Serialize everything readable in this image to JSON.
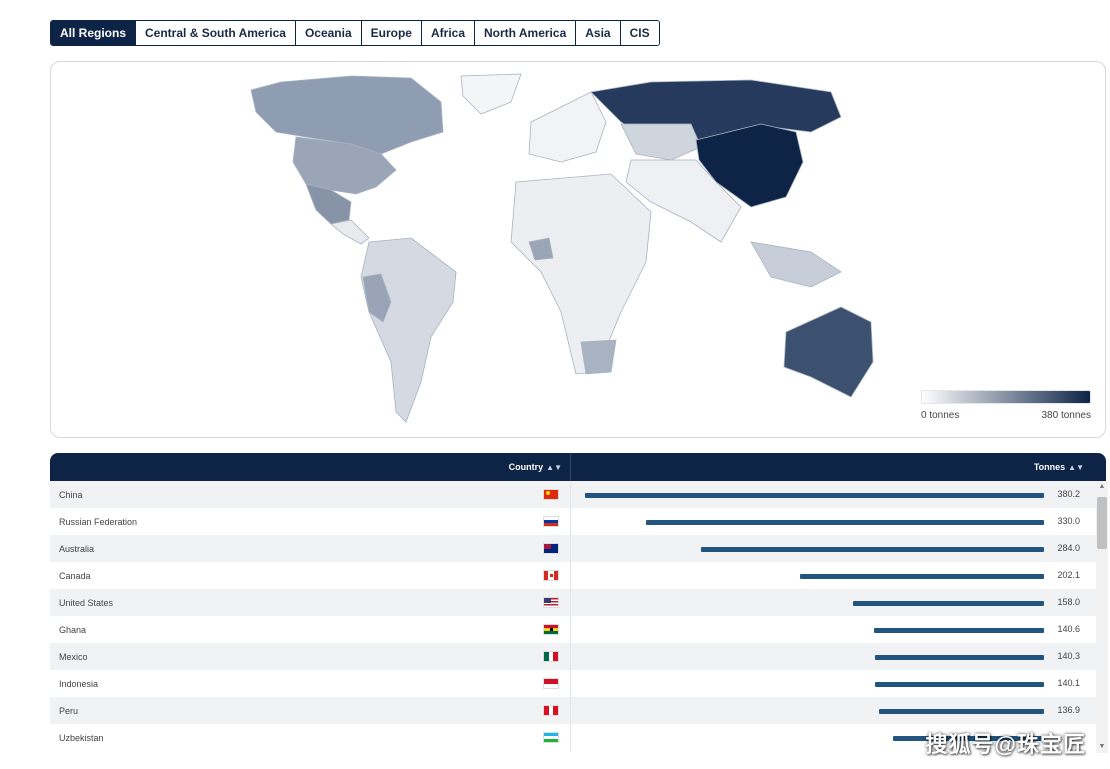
{
  "tabs": [
    {
      "label": "All Regions",
      "active": true
    },
    {
      "label": "Central & South America",
      "active": false
    },
    {
      "label": "Oceania",
      "active": false
    },
    {
      "label": "Europe",
      "active": false
    },
    {
      "label": "Africa",
      "active": false
    },
    {
      "label": "North America",
      "active": false
    },
    {
      "label": "Asia",
      "active": false
    },
    {
      "label": "CIS",
      "active": false
    }
  ],
  "legend": {
    "min_label": "0 tonnes",
    "max_label": "380 tonnes",
    "min_color": "#ffffff",
    "max_color": "#0d2447"
  },
  "table": {
    "columns": {
      "country": "Country",
      "tonnes": "Tonnes"
    },
    "max_value": 380.2,
    "rows": [
      {
        "country": "China",
        "value": "380.2",
        "num": 380.2,
        "flag": "cn"
      },
      {
        "country": "Russian Federation",
        "value": "330.0",
        "num": 330.0,
        "flag": "ru"
      },
      {
        "country": "Australia",
        "value": "284.0",
        "num": 284.0,
        "flag": "au"
      },
      {
        "country": "Canada",
        "value": "202.1",
        "num": 202.1,
        "flag": "ca"
      },
      {
        "country": "United States",
        "value": "158.0",
        "num": 158.0,
        "flag": "us"
      },
      {
        "country": "Ghana",
        "value": "140.6",
        "num": 140.6,
        "flag": "gh"
      },
      {
        "country": "Mexico",
        "value": "140.3",
        "num": 140.3,
        "flag": "mx"
      },
      {
        "country": "Indonesia",
        "value": "140.1",
        "num": 140.1,
        "flag": "id"
      },
      {
        "country": "Peru",
        "value": "136.9",
        "num": 136.9,
        "flag": "pe"
      },
      {
        "country": "Uzbekistan",
        "value": "",
        "num": 125.0,
        "flag": "uz"
      }
    ]
  },
  "colors": {
    "header": "#0d2447",
    "bar": "#21557f"
  },
  "watermark": "搜狐号@珠宝匠"
}
